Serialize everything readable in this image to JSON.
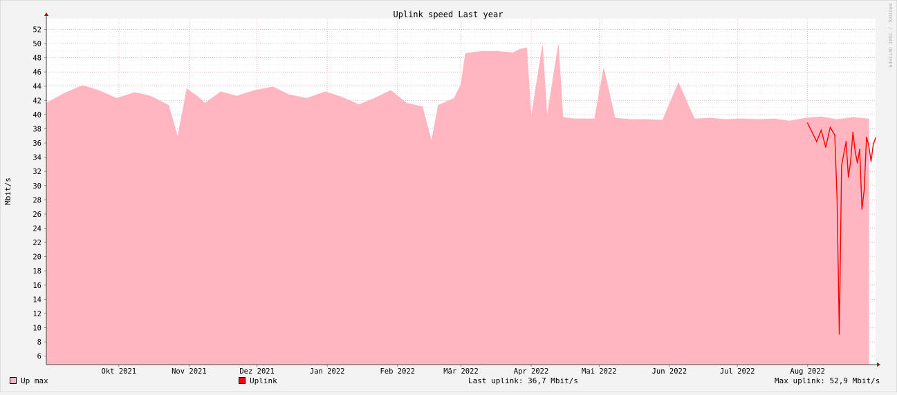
{
  "chart_data": {
    "type": "area",
    "title": "Uplink speed Last year",
    "ylabel": "Mbit/s",
    "watermark": "RRDTOOL / TOBI OETIKER",
    "ylim": [
      4.8,
      53.5
    ],
    "y_ticks": [
      6,
      8,
      10,
      12,
      14,
      16,
      18,
      20,
      22,
      24,
      26,
      28,
      30,
      32,
      34,
      36,
      38,
      40,
      42,
      44,
      46,
      48,
      50,
      52
    ],
    "x_range": [
      "2021-08-30",
      "2022-08-31"
    ],
    "x_ticks": [
      {
        "label": "Okt 2021",
        "date": "2021-10-01"
      },
      {
        "label": "Nov 2021",
        "date": "2021-11-01"
      },
      {
        "label": "Dez 2021",
        "date": "2021-12-01"
      },
      {
        "label": "Jan 2022",
        "date": "2022-01-01"
      },
      {
        "label": "Feb 2022",
        "date": "2022-02-01"
      },
      {
        "label": "Mär 2022",
        "date": "2022-03-01"
      },
      {
        "label": "Apr 2022",
        "date": "2022-04-01"
      },
      {
        "label": "Mai 2022",
        "date": "2022-05-01"
      },
      {
        "label": "Jun 2022",
        "date": "2022-06-01"
      },
      {
        "label": "Jul 2022",
        "date": "2022-07-01"
      },
      {
        "label": "Aug 2022",
        "date": "2022-08-01"
      }
    ],
    "series": [
      {
        "name": "Up max",
        "color": "#ffb6c1",
        "style": "area",
        "x": [
          "2021-08-30",
          "2021-09-07",
          "2021-09-15",
          "2021-09-22",
          "2021-09-30",
          "2021-10-08",
          "2021-10-15",
          "2021-10-23",
          "2021-10-27",
          "2021-10-31",
          "2021-11-05",
          "2021-11-08",
          "2021-11-15",
          "2021-11-22",
          "2021-11-30",
          "2021-12-08",
          "2021-12-15",
          "2021-12-23",
          "2021-12-31",
          "2022-01-07",
          "2022-01-15",
          "2022-01-22",
          "2022-01-29",
          "2022-02-05",
          "2022-02-12",
          "2022-02-16",
          "2022-02-19",
          "2022-02-26",
          "2022-03-01",
          "2022-03-03",
          "2022-03-10",
          "2022-03-17",
          "2022-03-24",
          "2022-03-27",
          "2022-03-30",
          "2022-04-01",
          "2022-04-06",
          "2022-04-08",
          "2022-04-13",
          "2022-04-15",
          "2022-04-20",
          "2022-04-22",
          "2022-04-29",
          "2022-05-03",
          "2022-05-08",
          "2022-05-15",
          "2022-05-22",
          "2022-05-29",
          "2022-06-05",
          "2022-06-12",
          "2022-06-19",
          "2022-06-26",
          "2022-07-03",
          "2022-07-10",
          "2022-07-17",
          "2022-07-24",
          "2022-07-31",
          "2022-08-07",
          "2022-08-14",
          "2022-08-21",
          "2022-08-28"
        ],
        "values": [
          41.6,
          43,
          44.1,
          43.4,
          42.3,
          43.1,
          42.6,
          41.3,
          36.8,
          43.6,
          42.5,
          41.6,
          43.2,
          42.6,
          43.4,
          43.9,
          42.8,
          42.3,
          43.2,
          42.5,
          41.4,
          42.3,
          43.4,
          41.6,
          41.1,
          36.2,
          41.3,
          42.3,
          44.2,
          48.6,
          48.9,
          48.9,
          48.7,
          49.2,
          49.4,
          39.6,
          49.7,
          39.7,
          49.8,
          39.6,
          39.4,
          39.4,
          39.4,
          46.5,
          39.5,
          39.3,
          39.3,
          39.2,
          44.5,
          39.4,
          39.5,
          39.3,
          39.4,
          39.3,
          39.4,
          39.1,
          39.5,
          39.7,
          39.3,
          39.6,
          39.4
        ]
      },
      {
        "name": "Uplink",
        "color": "#ff0000",
        "style": "line",
        "x": [
          "2022-08-01",
          "2022-08-03",
          "2022-08-05",
          "2022-08-07",
          "2022-08-09",
          "2022-08-11",
          "2022-08-13",
          "2022-08-14",
          "2022-08-15",
          "2022-08-16",
          "2022-08-17",
          "2022-08-18",
          "2022-08-19",
          "2022-08-20",
          "2022-08-21",
          "2022-08-22",
          "2022-08-23",
          "2022-08-24",
          "2022-08-25",
          "2022-08-26",
          "2022-08-27",
          "2022-08-28",
          "2022-08-29",
          "2022-08-30",
          "2022-08-31"
        ],
        "values": [
          38.8,
          37.5,
          36.2,
          37.8,
          35.4,
          38.2,
          37.1,
          28.2,
          9.1,
          32.8,
          34.5,
          36.2,
          31.2,
          33.4,
          37.5,
          34.8,
          33.2,
          35.1,
          26.7,
          29.4,
          36.8,
          35.7,
          33.4,
          35.8,
          36.7
        ]
      }
    ]
  },
  "legend": {
    "up_max_label": "Up max",
    "uplink_label": "Uplink",
    "last_text": "Last uplink: 36,7 Mbit/s",
    "max_text": "Max uplink: 52,9 Mbit/s"
  }
}
